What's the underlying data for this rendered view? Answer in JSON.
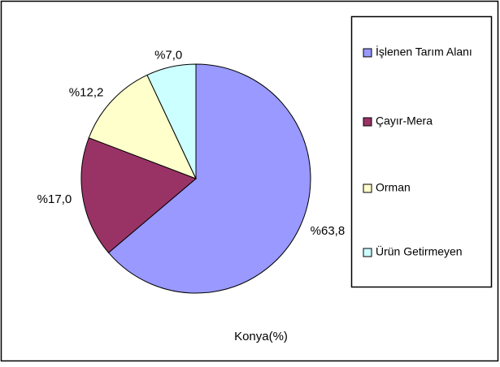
{
  "chart_data": {
    "type": "pie",
    "title": "Konya(%)",
    "categories": [
      "İşlenen Tarım Alanı",
      "Çayır-Mera",
      "Orman",
      "Ürün Getirmeyen"
    ],
    "values": [
      63.8,
      17.0,
      12.2,
      7.0
    ],
    "value_labels": [
      "%63,8",
      "%17,0",
      "%12,2",
      "%7,0"
    ],
    "colors": [
      "#9999ff",
      "#993366",
      "#ffffcc",
      "#ccffff"
    ],
    "legend": "right"
  }
}
